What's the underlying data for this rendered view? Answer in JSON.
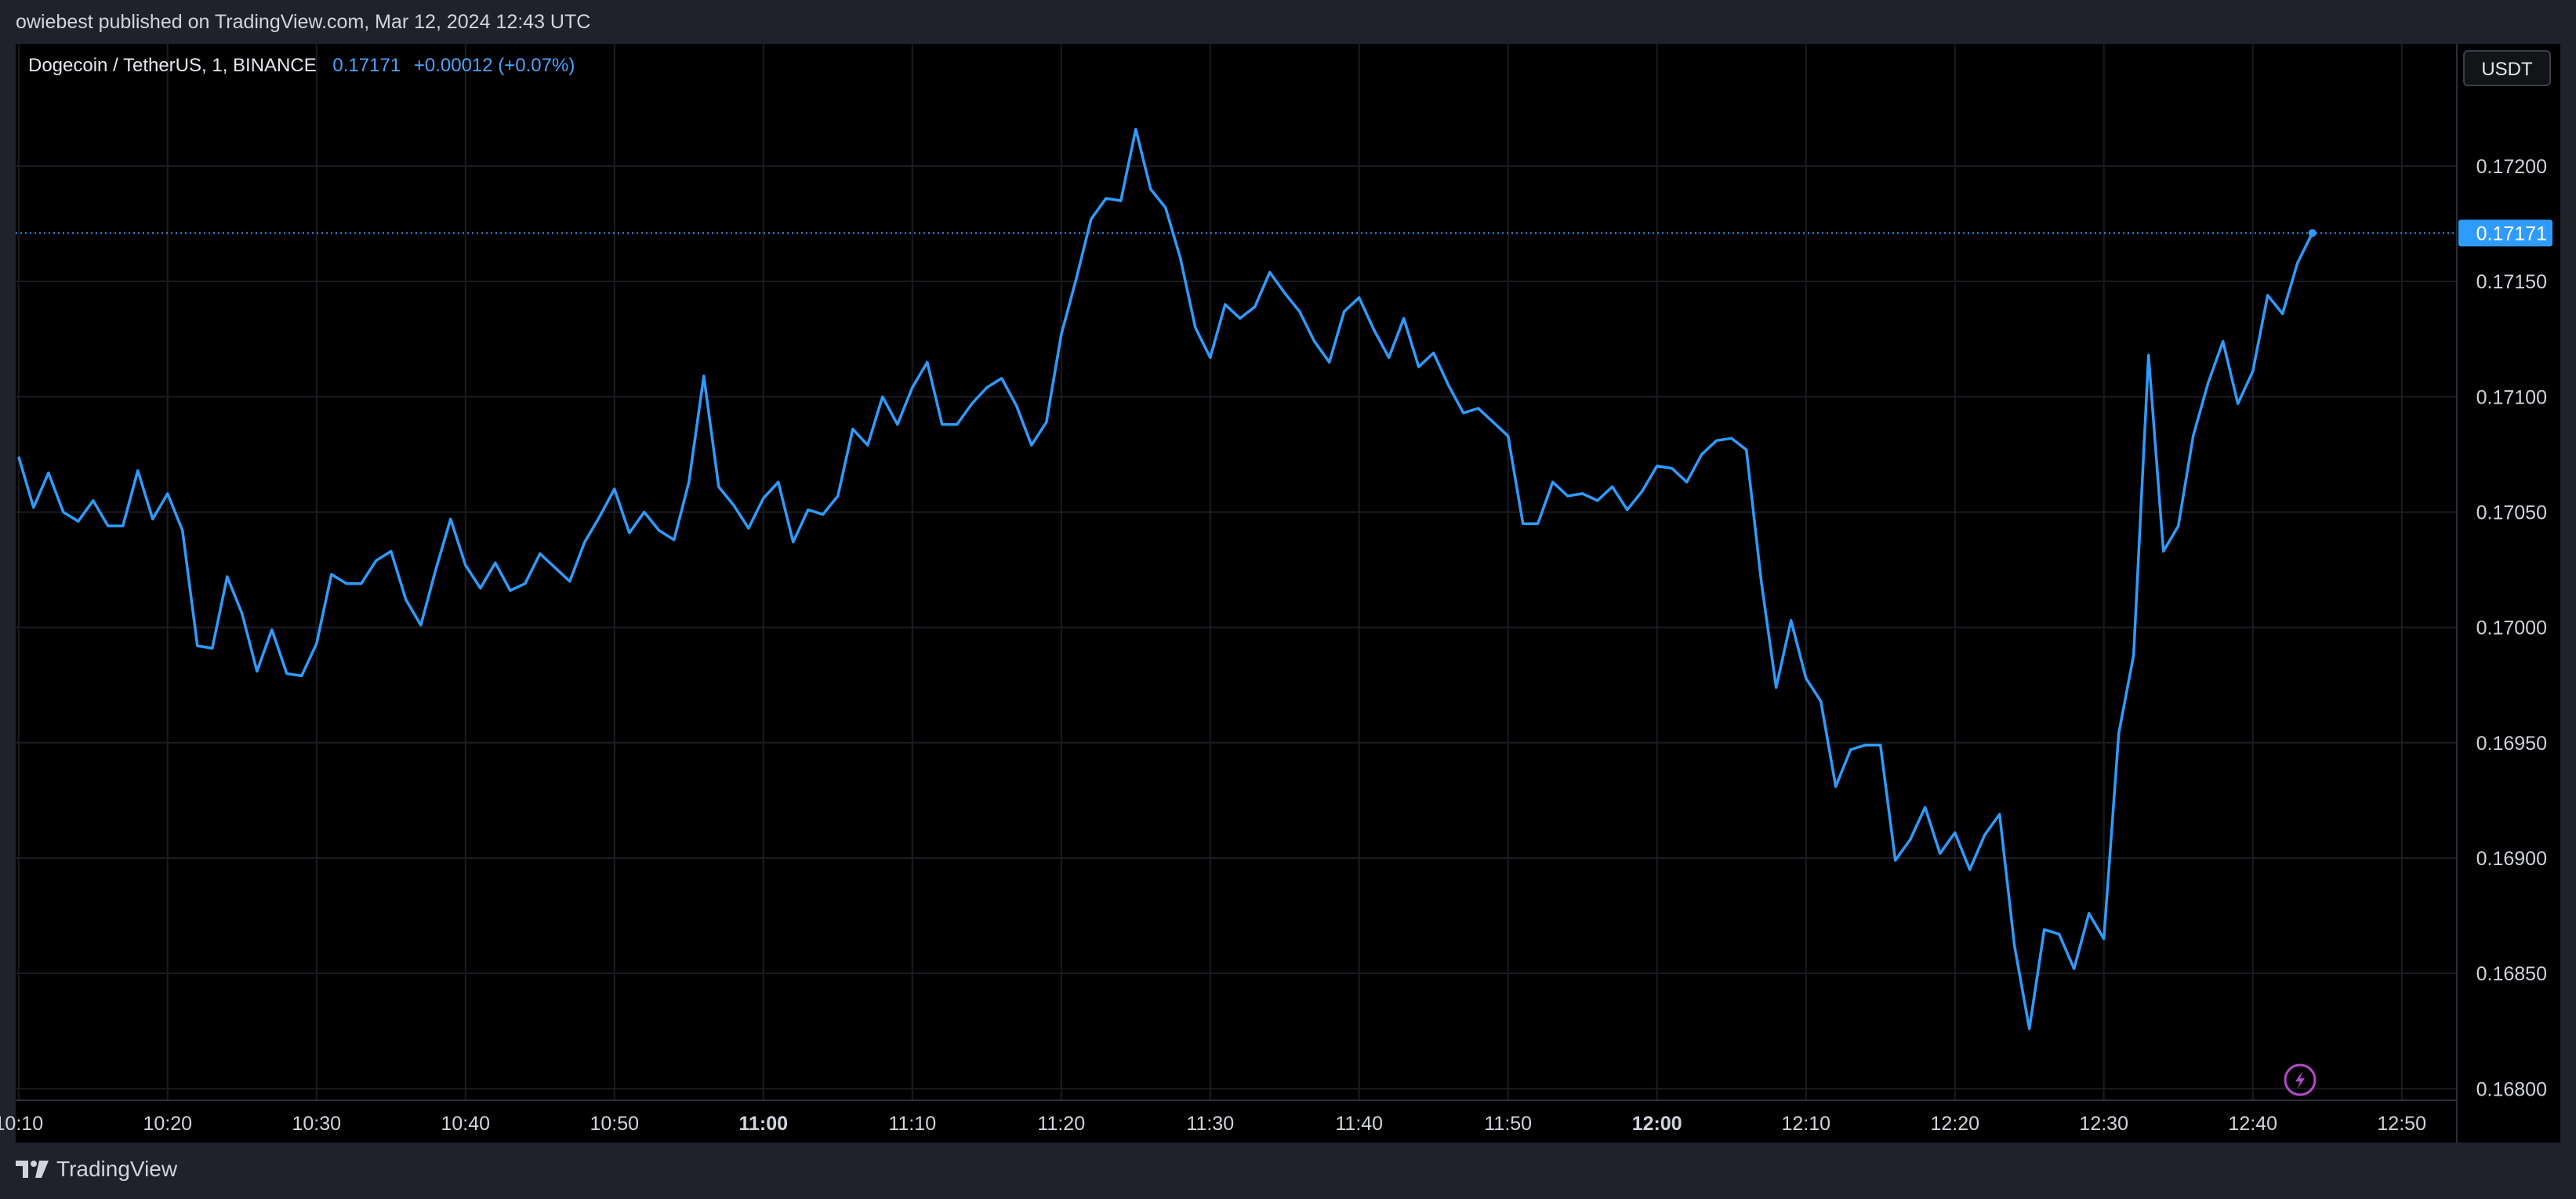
{
  "attribution": "owiebest published on TradingView.com, Mar 12, 2024 12:43 UTC",
  "legend": {
    "symbol": "Dogecoin / TetherUS, 1, BINANCE",
    "price": "0.17171",
    "change": "+0.00012 (+0.07%)"
  },
  "currency_button": "USDT",
  "brand": {
    "name": "TradingView",
    "icon": "tradingview-logo-icon"
  },
  "flash_icon": "lightning-icon",
  "colors": {
    "background": "#000000",
    "frame": "#1f222c",
    "line": "#2f9bff",
    "grid": "#1a1c22",
    "axis_text": "#d1d4dc",
    "price_label_bg": "#2f9bff",
    "flash": "#b24cc9"
  },
  "chart_data": {
    "type": "line",
    "title": "Dogecoin / TetherUS, 1, BINANCE",
    "xlabel": "",
    "ylabel": "",
    "x_ticks": [
      {
        "label": "10:10",
        "bold": false
      },
      {
        "label": "10:20",
        "bold": false
      },
      {
        "label": "10:30",
        "bold": false
      },
      {
        "label": "10:40",
        "bold": false
      },
      {
        "label": "10:50",
        "bold": false
      },
      {
        "label": "11:00",
        "bold": true
      },
      {
        "label": "11:10",
        "bold": false
      },
      {
        "label": "11:20",
        "bold": false
      },
      {
        "label": "11:30",
        "bold": false
      },
      {
        "label": "11:40",
        "bold": false
      },
      {
        "label": "11:50",
        "bold": false
      },
      {
        "label": "12:00",
        "bold": true
      },
      {
        "label": "12:10",
        "bold": false
      },
      {
        "label": "12:20",
        "bold": false
      },
      {
        "label": "12:30",
        "bold": false
      },
      {
        "label": "12:40",
        "bold": false
      },
      {
        "label": "12:50",
        "bold": false
      }
    ],
    "x_range_minutes_after_10_10": [
      -0.2,
      163.7
    ],
    "y_ticks": [
      "0.16800",
      "0.16850",
      "0.16900",
      "0.16950",
      "0.17000",
      "0.17050",
      "0.17100",
      "0.17150",
      "0.17200"
    ],
    "ylim": [
      0.16795,
      0.17253
    ],
    "last_price": 0.17171,
    "last_price_label": "0.17171",
    "grid": true,
    "series": [
      {
        "start_time": "10:10",
        "interval_minutes": 1,
        "values": [
          0.17074,
          0.17052,
          0.17067,
          0.1705,
          0.17046,
          0.17055,
          0.17044,
          0.17044,
          0.17068,
          0.17047,
          0.17058,
          0.17042,
          0.16992,
          0.16991,
          0.17022,
          0.17006,
          0.16981,
          0.16999,
          0.1698,
          0.16979,
          0.16993,
          0.17023,
          0.17019,
          0.17019,
          0.17029,
          0.17033,
          0.17012,
          0.17001,
          0.17025,
          0.17047,
          0.17027,
          0.17017,
          0.17028,
          0.17016,
          0.17019,
          0.17032,
          0.17026,
          0.1702,
          0.17037,
          0.17048,
          0.1706,
          0.17041,
          0.1705,
          0.17042,
          0.17038,
          0.17063,
          0.17109,
          0.17061,
          0.17053,
          0.17043,
          0.17056,
          0.17063,
          0.17037,
          0.17051,
          0.17049,
          0.17057,
          0.17086,
          0.17079,
          0.171,
          0.17088,
          0.17104,
          0.17115,
          0.17088,
          0.17088,
          0.17097,
          0.17104,
          0.17108,
          0.17096,
          0.17079,
          0.17089,
          0.17127,
          0.17151,
          0.17177,
          0.17186,
          0.17185,
          0.17216,
          0.1719,
          0.17182,
          0.1716,
          0.1713,
          0.17117,
          0.1714,
          0.17134,
          0.17139,
          0.17154,
          0.17145,
          0.17137,
          0.17124,
          0.17115,
          0.17137,
          0.17143,
          0.17129,
          0.17117,
          0.17134,
          0.17113,
          0.17119,
          0.17105,
          0.17093,
          0.17095,
          0.17089,
          0.17083,
          0.17045,
          0.17045,
          0.17063,
          0.17057,
          0.17058,
          0.17055,
          0.17061,
          0.17051,
          0.17059,
          0.1707,
          0.17069,
          0.17063,
          0.17075,
          0.17081,
          0.17082,
          0.17077,
          0.1702,
          0.16974,
          0.17003,
          0.16978,
          0.16968,
          0.16931,
          0.16947,
          0.16949,
          0.16949,
          0.16899,
          0.16908,
          0.16922,
          0.16902,
          0.16911,
          0.16895,
          0.1691,
          0.16919,
          0.16862,
          0.16826,
          0.16869,
          0.16867,
          0.16852,
          0.16876,
          0.16865,
          0.16954,
          0.16988,
          0.17118,
          0.17033,
          0.17044,
          0.17083,
          0.17106,
          0.17124,
          0.17097,
          0.17111,
          0.17144,
          0.17136,
          0.17158,
          0.17171
        ]
      }
    ]
  }
}
